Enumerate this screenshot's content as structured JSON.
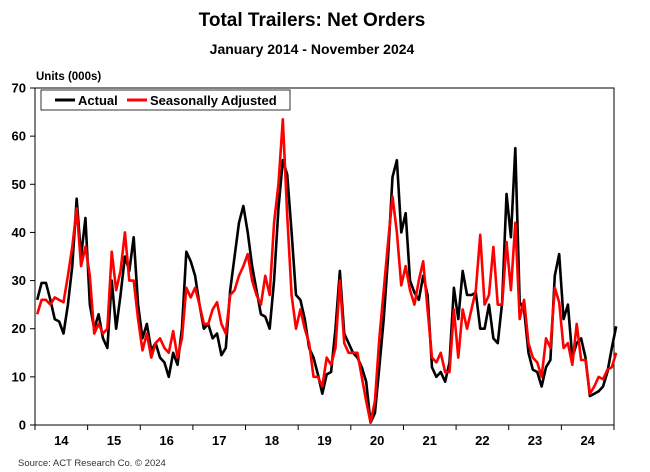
{
  "chart_data": {
    "type": "line",
    "title": "Total Trailers: Net Orders",
    "subtitle": "January 2014 - November 2024",
    "ylabel": "Units (000s)",
    "xlabel": "",
    "ylim": [
      0,
      70
    ],
    "yticks": [
      0,
      10,
      20,
      30,
      40,
      50,
      60,
      70
    ],
    "x_start": "2014-01",
    "x_end": "2024-11",
    "year_labels": [
      "14",
      "15",
      "16",
      "17",
      "18",
      "19",
      "20",
      "21",
      "22",
      "23",
      "24"
    ],
    "grid": false,
    "legend_position": "top-left",
    "source": "Source: ACT Research Co. © 2024",
    "series": [
      {
        "name": "Actual",
        "color": "#000000",
        "values": [
          26,
          29.5,
          29.5,
          26,
          22,
          21.5,
          19,
          25,
          33,
          47,
          35,
          43,
          25,
          20,
          23,
          18,
          16,
          30,
          20,
          27,
          35,
          32,
          39,
          25,
          18,
          21,
          15.5,
          17,
          14,
          13,
          10,
          15,
          12.5,
          20,
          36,
          34,
          31,
          25,
          20,
          21,
          18,
          19,
          14.5,
          16,
          28,
          35,
          42,
          45.5,
          40,
          33,
          28,
          23,
          22.5,
          20,
          30,
          45,
          55,
          52,
          40,
          27,
          26,
          22,
          16,
          14,
          10.5,
          6.5,
          10.5,
          11,
          20,
          32,
          19,
          17,
          15,
          14,
          12,
          9,
          0.5,
          2.5,
          12,
          22,
          35,
          51.5,
          55,
          40,
          44,
          30,
          27.5,
          26,
          31,
          27,
          12,
          10,
          11,
          9,
          13,
          28.5,
          22,
          32,
          27,
          27,
          27.5,
          20,
          20,
          25,
          18,
          17,
          25.5,
          48,
          39,
          57.5,
          25.5,
          24,
          15,
          11.5,
          11,
          8,
          12,
          13.5,
          31,
          35.5,
          22,
          25,
          14,
          17,
          18,
          14,
          6,
          6.5,
          7,
          8,
          11,
          16,
          20.5
        ]
      },
      {
        "name": "Seasonally Adjusted",
        "color": "#ff0000",
        "values": [
          23,
          26,
          26,
          25,
          26.5,
          26,
          25.5,
          31,
          37,
          45,
          33,
          37,
          31,
          19,
          21,
          19,
          20,
          36,
          28,
          32,
          40,
          30,
          30,
          22,
          15.5,
          19,
          14,
          17,
          18,
          16,
          15,
          19.5,
          14,
          18,
          28.5,
          26.5,
          28.5,
          25,
          21,
          21,
          24,
          25.5,
          21,
          19,
          27,
          28,
          31,
          33,
          35.5,
          30,
          27,
          25,
          31,
          27,
          42,
          50,
          63.5,
          43.5,
          27,
          20,
          24,
          20,
          17,
          10,
          10,
          8,
          14,
          12.5,
          16,
          30,
          17,
          15,
          15,
          15,
          10,
          5,
          0.5,
          5,
          18,
          28,
          38,
          47.5,
          40,
          29,
          33,
          28,
          25,
          30,
          34,
          24,
          14,
          13,
          15,
          11,
          11,
          24,
          14,
          24,
          20,
          24,
          28,
          39.5,
          25,
          27,
          37,
          25,
          25,
          38,
          28,
          42,
          22,
          26,
          17,
          14,
          13,
          10,
          18,
          16,
          28.5,
          25.5,
          16,
          17,
          12.5,
          21,
          13.5,
          13.5,
          6.5,
          8,
          10,
          9.5,
          11.5,
          12,
          15
        ]
      }
    ]
  }
}
